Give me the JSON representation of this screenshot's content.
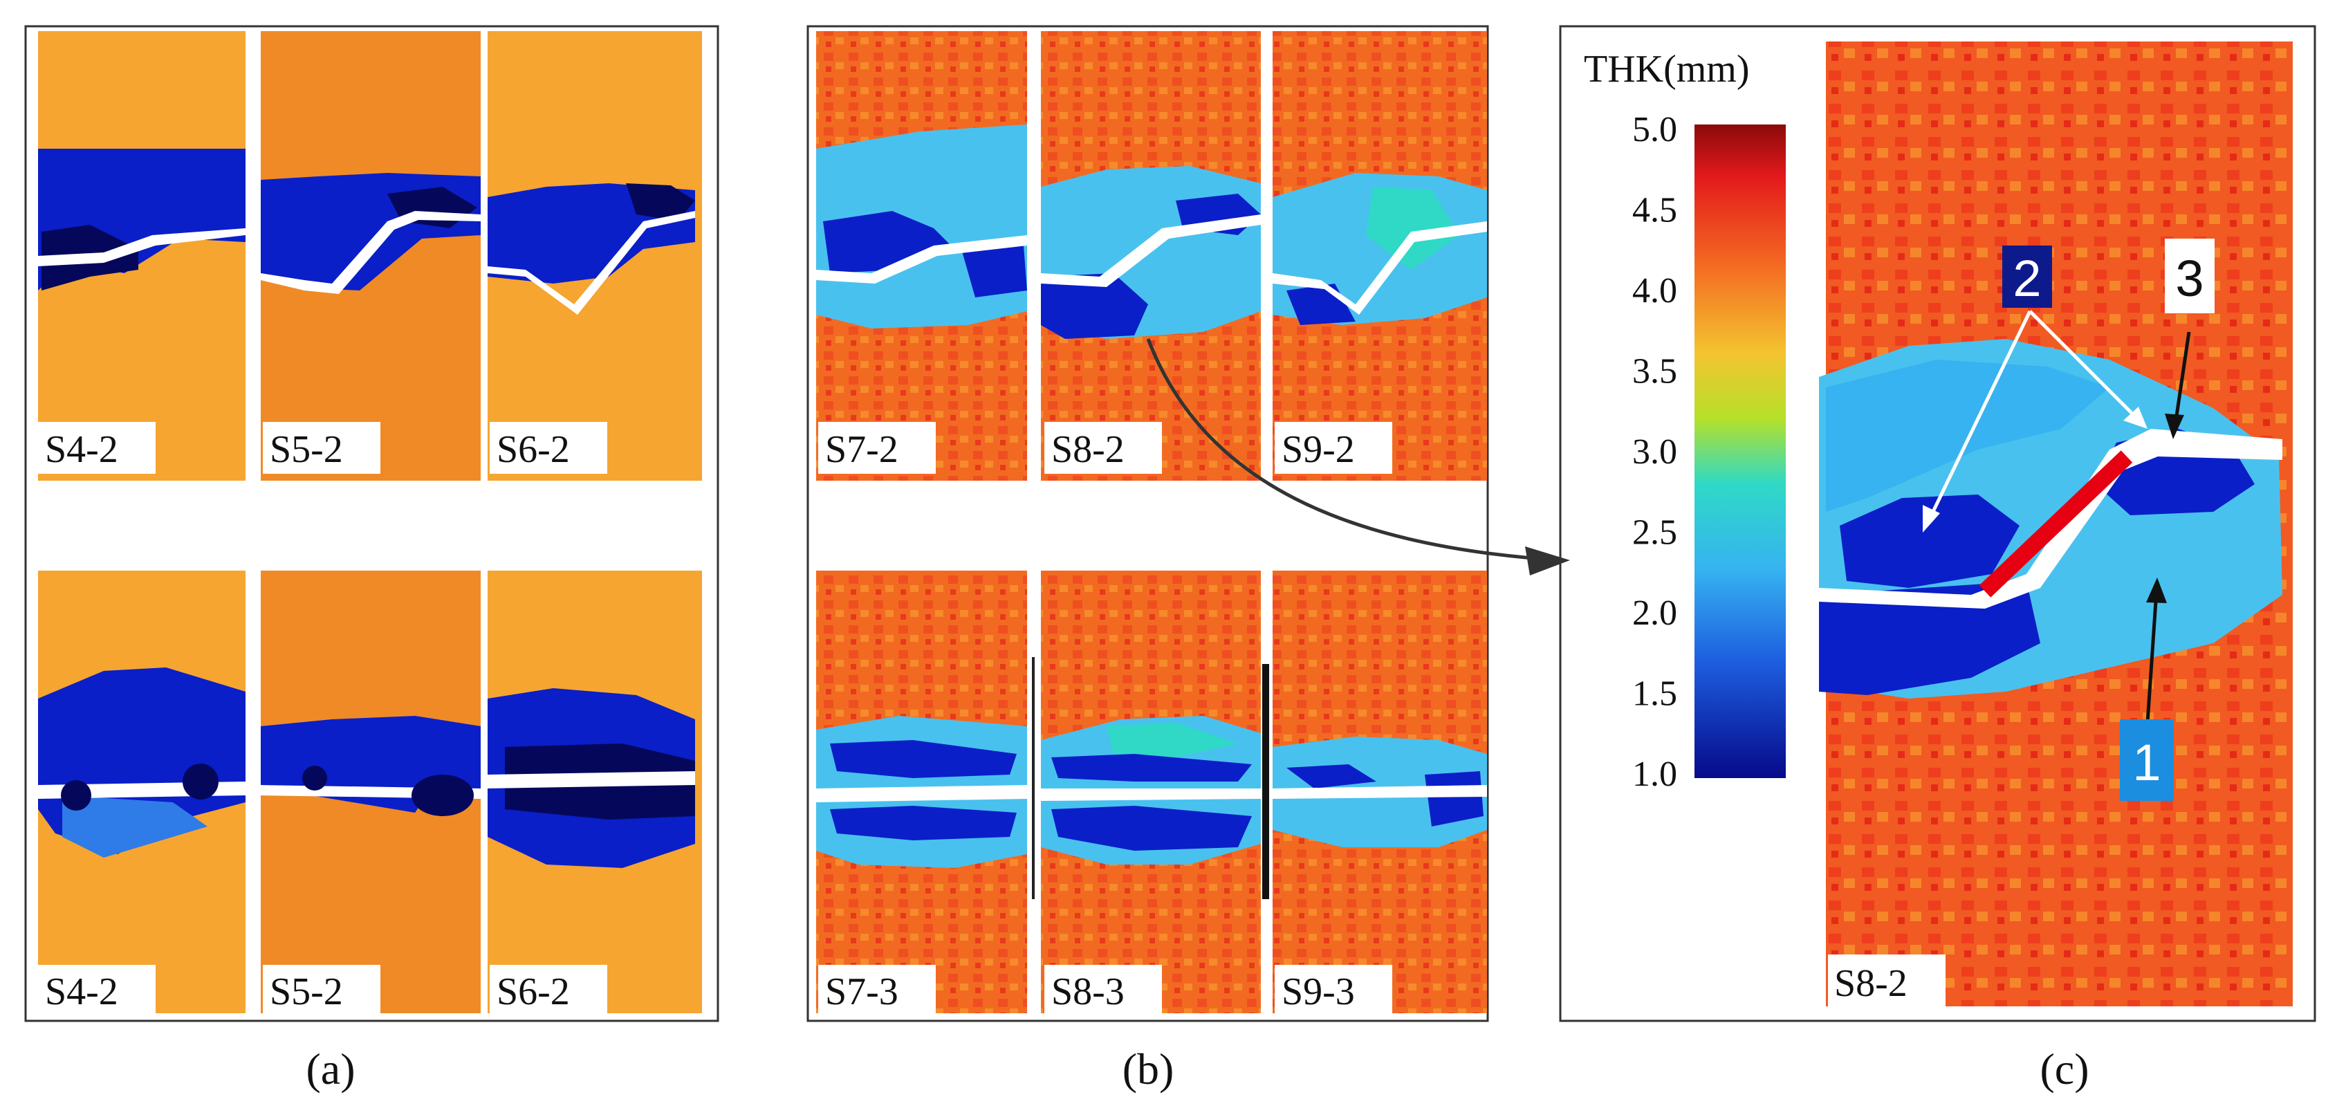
{
  "figure": {
    "panels": [
      {
        "id": "a",
        "caption": "(a)",
        "top_row": [
          "S4-2",
          "S5-2",
          "S6-2"
        ],
        "bottom_row": [
          "S4-2",
          "S5-2",
          "S6-2"
        ]
      },
      {
        "id": "b",
        "caption": "(b)",
        "top_row": [
          "S7-2",
          "S8-2",
          "S9-2"
        ],
        "bottom_row": [
          "S7-3",
          "S8-3",
          "S9-3"
        ]
      },
      {
        "id": "c",
        "caption": "(c)",
        "specimen": "S8-2",
        "markers": [
          "1",
          "2",
          "3"
        ]
      }
    ],
    "colorbar": {
      "title": "THK(mm)",
      "ticks": [
        "5.0",
        "4.5",
        "4.0",
        "3.5",
        "3.0",
        "2.5",
        "2.0",
        "1.5",
        "1.0"
      ],
      "min": 1.0,
      "max": 5.0
    },
    "colors": {
      "orange_a": "#f6a531",
      "orange_a_mid": "#f08a26",
      "orange_b": "#f26a22",
      "red_b": "#e8391c",
      "blue_dark": "#0a1fc8",
      "blue_mid": "#2f7be8",
      "cyan": "#49c1ee",
      "navy": "#05085a",
      "line_red": "#e60012",
      "marker2_bg": "#0d1a8c",
      "marker1_bg": "#1c8ee0"
    }
  }
}
